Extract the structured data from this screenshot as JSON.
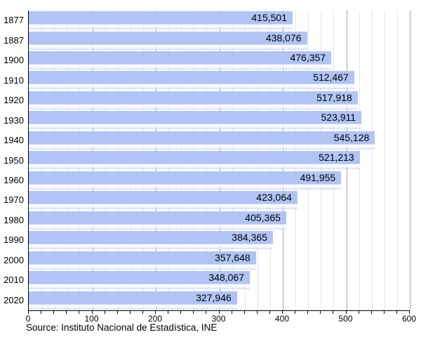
{
  "chart_data": {
    "type": "bar",
    "orientation": "horizontal",
    "title": "",
    "xlabel": "",
    "ylabel": "",
    "categories": [
      "1877",
      "1887",
      "1900",
      "1910",
      "1920",
      "1930",
      "1940",
      "1950",
      "1960",
      "1970",
      "1980",
      "1990",
      "2000",
      "2010",
      "2020"
    ],
    "values": [
      415501,
      438076,
      476357,
      512467,
      517918,
      523911,
      545128,
      521213,
      491955,
      423064,
      405365,
      384365,
      357648,
      348067,
      327946
    ],
    "value_labels": [
      "415,501",
      "438,076",
      "476,357",
      "512,467",
      "517,918",
      "523,911",
      "545,128",
      "521,213",
      "491,955",
      "423,064",
      "405,365",
      "384,365",
      "357,648",
      "348,067",
      "327,946"
    ],
    "xlim": [
      0,
      600
    ],
    "x_major_ticks": [
      0,
      100,
      200,
      300,
      400,
      500,
      600
    ],
    "x_minor_step": 20,
    "value_scale_note": "x axis in thousands",
    "grid": true,
    "legend": "none",
    "bar_color": "#b0c4f5",
    "bar_stripe_highlight": "rgba(255,255,255,0.85)",
    "bar_stripe_fade": "rgba(176,197,245,0.55)",
    "minor_grid_color": "#e4e4e4",
    "major_grid_color": "#a5a5a5",
    "axis_color": "#000000"
  },
  "footer": {
    "source": "Source: Instituto Nacional de Estadística, INE"
  }
}
